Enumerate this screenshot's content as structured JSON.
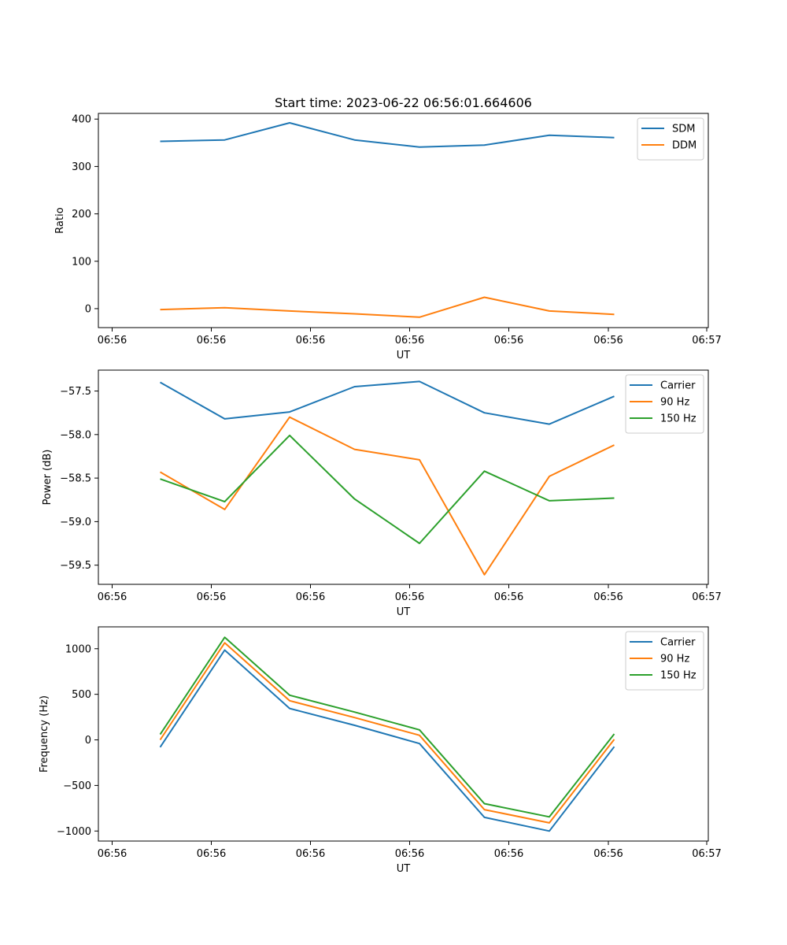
{
  "title": "Start time: 2023-06-22 06:56:01.664606",
  "chart_data": [
    {
      "type": "line",
      "xlabel": "UT",
      "ylabel": "Ratio",
      "x_tick_labels": [
        "06:56",
        "06:56",
        "06:56",
        "06:56",
        "06:56",
        "06:56",
        "06:57"
      ],
      "y_ticks": [
        0,
        100,
        200,
        300,
        400
      ],
      "y_tick_labels": [
        "0",
        "100",
        "200",
        "300",
        "400"
      ],
      "ylim": [
        -40,
        412
      ],
      "legend": "top-right",
      "series": [
        {
          "name": "SDM",
          "color": "#1f77b4",
          "values": [
            353,
            356,
            392,
            356,
            341,
            345,
            366,
            361
          ]
        },
        {
          "name": "DDM",
          "color": "#ff7f0e",
          "values": [
            -2,
            2,
            -5,
            -11,
            -18,
            24,
            -5,
            -12
          ]
        }
      ]
    },
    {
      "type": "line",
      "xlabel": "UT",
      "ylabel": "Power (dB)",
      "x_tick_labels": [
        "06:56",
        "06:56",
        "06:56",
        "06:56",
        "06:56",
        "06:56",
        "06:57"
      ],
      "y_ticks": [
        -57.5,
        -58.0,
        -58.5,
        -59.0,
        -59.5
      ],
      "y_tick_labels": [
        "−57.5",
        "−58.0",
        "−58.5",
        "−59.0",
        "−59.5"
      ],
      "ylim": [
        -59.72,
        -57.26
      ],
      "legend": "top-right",
      "series": [
        {
          "name": "Carrier",
          "color": "#1f77b4",
          "values": [
            -57.4,
            -57.82,
            -57.74,
            -57.45,
            -57.39,
            -57.75,
            -57.88,
            -57.56
          ]
        },
        {
          "name": "90 Hz",
          "color": "#ff7f0e",
          "values": [
            -58.43,
            -58.86,
            -57.8,
            -58.17,
            -58.29,
            -59.61,
            -58.48,
            -58.12
          ]
        },
        {
          "name": "150 Hz",
          "color": "#2ca02c",
          "values": [
            -58.51,
            -58.77,
            -58.01,
            -58.74,
            -59.25,
            -58.42,
            -58.76,
            -58.73
          ]
        }
      ]
    },
    {
      "type": "line",
      "xlabel": "UT",
      "ylabel": "Frequency (Hz)",
      "x_tick_labels": [
        "06:56",
        "06:56",
        "06:56",
        "06:56",
        "06:56",
        "06:56",
        "06:57"
      ],
      "y_ticks": [
        1000,
        500,
        0,
        -500,
        -1000
      ],
      "y_tick_labels": [
        "1000",
        "500",
        "0",
        "−500",
        "−1000"
      ],
      "ylim": [
        -1110,
        1240
      ],
      "legend": "top-right",
      "series": [
        {
          "name": "Carrier",
          "color": "#1f77b4",
          "values": [
            -80,
            985,
            345,
            160,
            -40,
            -850,
            -1000,
            -75
          ]
        },
        {
          "name": "90 Hz",
          "color": "#ff7f0e",
          "values": [
            0,
            1065,
            430,
            245,
            50,
            -765,
            -910,
            5
          ]
        },
        {
          "name": "150 Hz",
          "color": "#2ca02c",
          "values": [
            60,
            1125,
            490,
            305,
            110,
            -700,
            -845,
            65
          ]
        }
      ]
    }
  ]
}
